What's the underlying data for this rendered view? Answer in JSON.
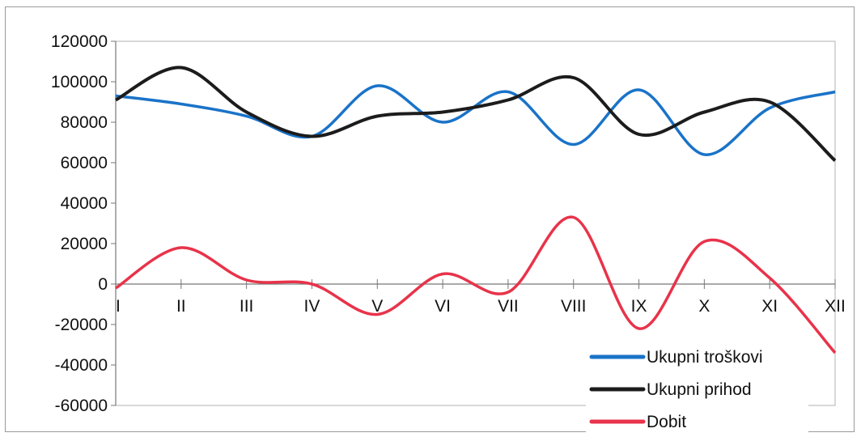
{
  "chart_data": {
    "type": "line",
    "smooth": true,
    "categories": [
      "I",
      "II",
      "III",
      "IV",
      "V",
      "VI",
      "VII",
      "VIII",
      "IX",
      "X",
      "XI",
      "XII"
    ],
    "ylim": [
      -60000,
      120000
    ],
    "yticks": [
      120000,
      100000,
      80000,
      60000,
      40000,
      20000,
      0,
      -20000,
      -40000,
      -60000
    ],
    "ytick_labels": [
      "120000",
      "100000",
      "80000",
      "60000",
      "40000",
      "20000",
      "0",
      "-20000",
      "-40000",
      "-60000"
    ],
    "grid": false,
    "legend_position": "bottom-right",
    "series": [
      {
        "name": "Ukupni troškovi",
        "color": "#1a73c8",
        "values": [
          93000,
          89000,
          83000,
          73000,
          98000,
          80000,
          95000,
          69000,
          96000,
          64000,
          87000,
          95000
        ]
      },
      {
        "name": "Ukupni prihod",
        "color": "#1c1c1c",
        "values": [
          91000,
          107000,
          85000,
          73000,
          83000,
          85000,
          91000,
          102000,
          74000,
          85000,
          90000,
          61000
        ]
      },
      {
        "name": "Dobit",
        "color": "#e8334a",
        "values": [
          -2000,
          18000,
          2000,
          0,
          -15000,
          5000,
          -4000,
          33000,
          -22000,
          21000,
          3000,
          -34000
        ]
      }
    ]
  }
}
